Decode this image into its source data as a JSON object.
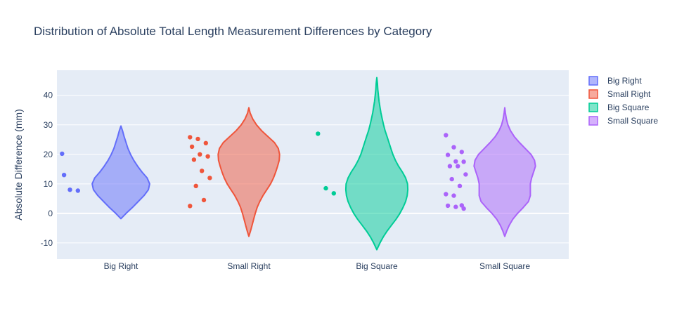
{
  "chart_data": {
    "type": "violin",
    "title": "Distribution of Absolute Total Length Measurement Differences by Category",
    "ylabel": "Absolute Difference (mm)",
    "ylim": [
      -15.5,
      48.5
    ],
    "yticks": [
      -10,
      0,
      10,
      20,
      30,
      40
    ],
    "categories": [
      "Big Right",
      "Small Right",
      "Big Square",
      "Small Square"
    ],
    "series": [
      {
        "name": "Big Right",
        "color": "#636efa",
        "fill": "rgba(99,110,250,0.5)",
        "points": [
          20.2,
          8.0,
          7.7,
          13.0
        ],
        "density": [
          [
            -1.8,
            0.0
          ],
          [
            0,
            0.16
          ],
          [
            2,
            0.36
          ],
          [
            4,
            0.54
          ],
          [
            6,
            0.72
          ],
          [
            8,
            0.86
          ],
          [
            10,
            0.9
          ],
          [
            12,
            0.82
          ],
          [
            14,
            0.66
          ],
          [
            16,
            0.52
          ],
          [
            18,
            0.4
          ],
          [
            20,
            0.3
          ],
          [
            22,
            0.22
          ],
          [
            24,
            0.16
          ],
          [
            26,
            0.1
          ],
          [
            28,
            0.05
          ],
          [
            29.6,
            0.0
          ]
        ]
      },
      {
        "name": "Small Right",
        "color": "#ef553b",
        "fill": "rgba(239,85,59,0.5)",
        "points": [
          25.8,
          25.2,
          23.8,
          22.6,
          20.0,
          19.3,
          18.2,
          14.4,
          12.0,
          9.3,
          4.5,
          2.5
        ],
        "density": [
          [
            -7.8,
            0.0
          ],
          [
            -6,
            0.05
          ],
          [
            -4,
            0.1
          ],
          [
            -2,
            0.15
          ],
          [
            0,
            0.2
          ],
          [
            2,
            0.26
          ],
          [
            4,
            0.34
          ],
          [
            6,
            0.44
          ],
          [
            8,
            0.56
          ],
          [
            10,
            0.68
          ],
          [
            12,
            0.77
          ],
          [
            14,
            0.84
          ],
          [
            16,
            0.9
          ],
          [
            18,
            0.95
          ],
          [
            20,
            0.96
          ],
          [
            22,
            0.92
          ],
          [
            24,
            0.8
          ],
          [
            26,
            0.6
          ],
          [
            28,
            0.4
          ],
          [
            30,
            0.24
          ],
          [
            32,
            0.12
          ],
          [
            34,
            0.04
          ],
          [
            35.8,
            0.0
          ]
        ]
      },
      {
        "name": "Big Square",
        "color": "#00cc96",
        "fill": "rgba(0,204,150,0.5)",
        "points": [
          27.0,
          8.5,
          6.8
        ],
        "density": [
          [
            -12.3,
            0.0
          ],
          [
            -10,
            0.1
          ],
          [
            -8,
            0.2
          ],
          [
            -6,
            0.32
          ],
          [
            -4,
            0.46
          ],
          [
            -2,
            0.6
          ],
          [
            0,
            0.72
          ],
          [
            2,
            0.82
          ],
          [
            4,
            0.9
          ],
          [
            6,
            0.95
          ],
          [
            8,
            0.97
          ],
          [
            10,
            0.96
          ],
          [
            12,
            0.9
          ],
          [
            14,
            0.8
          ],
          [
            16,
            0.68
          ],
          [
            18,
            0.58
          ],
          [
            20,
            0.5
          ],
          [
            22,
            0.44
          ],
          [
            24,
            0.38
          ],
          [
            26,
            0.32
          ],
          [
            28,
            0.26
          ],
          [
            30,
            0.21
          ],
          [
            32,
            0.17
          ],
          [
            34,
            0.13
          ],
          [
            36,
            0.1
          ],
          [
            38,
            0.07
          ],
          [
            40,
            0.05
          ],
          [
            42,
            0.03
          ],
          [
            44,
            0.02
          ],
          [
            46,
            0.0
          ]
        ]
      },
      {
        "name": "Small Square",
        "color": "#ab63fa",
        "fill": "rgba(171,99,250,0.5)",
        "points": [
          26.5,
          22.4,
          20.8,
          19.8,
          17.6,
          17.5,
          16.0,
          16.0,
          13.2,
          11.6,
          9.3,
          6.5,
          6.0,
          2.7,
          2.6,
          2.2,
          1.6
        ],
        "density": [
          [
            -7.8,
            0.0
          ],
          [
            -6,
            0.06
          ],
          [
            -4,
            0.14
          ],
          [
            -2,
            0.25
          ],
          [
            0,
            0.4
          ],
          [
            2,
            0.58
          ],
          [
            4,
            0.74
          ],
          [
            6,
            0.8
          ],
          [
            8,
            0.8
          ],
          [
            10,
            0.8
          ],
          [
            12,
            0.84
          ],
          [
            14,
            0.9
          ],
          [
            16,
            0.96
          ],
          [
            18,
            0.93
          ],
          [
            20,
            0.82
          ],
          [
            22,
            0.64
          ],
          [
            24,
            0.46
          ],
          [
            26,
            0.3
          ],
          [
            28,
            0.18
          ],
          [
            30,
            0.1
          ],
          [
            32,
            0.05
          ],
          [
            34,
            0.02
          ],
          [
            35.8,
            0.0
          ]
        ]
      }
    ],
    "legend_position": "top-right",
    "grid": true
  }
}
